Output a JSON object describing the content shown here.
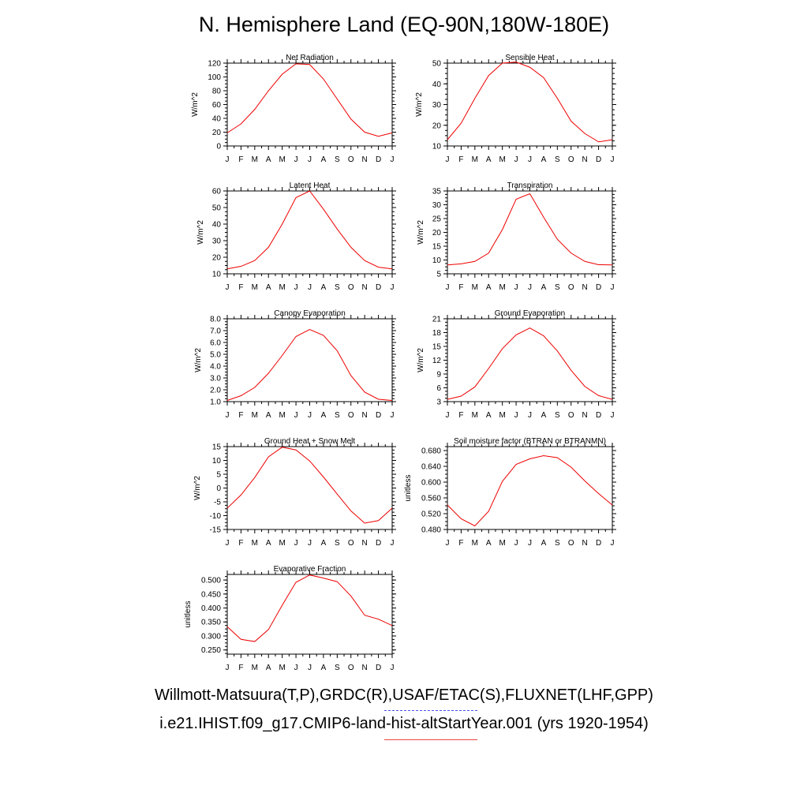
{
  "title": "N. Hemisphere Land (EQ-90N,180W-180E)",
  "legend": {
    "line1": "Willmott-Matsuura(T,P),GRDC(R),USAF/ETAC(S),FLUXNET(LHF,GPP)",
    "line2": "i.e21.IHIST.f09_g17.CMIP6-land-hist-altStartYear.001 (yrs 1920-1954)",
    "obs_color": "#4455ee",
    "model_color": "#ee4444"
  },
  "chart_data": [
    {
      "type": "line",
      "title": "Net Radiation",
      "ylabel": "W/m^2",
      "categories": [
        "J",
        "F",
        "M",
        "A",
        "M",
        "J",
        "J",
        "A",
        "S",
        "O",
        "N",
        "D",
        "J"
      ],
      "ylim": [
        0,
        120
      ],
      "yticks": [
        "0",
        "20",
        "40",
        "60",
        "80",
        "100",
        "120"
      ],
      "series": [
        {
          "color": "#ee0000",
          "values": [
            19,
            32,
            53,
            80,
            104,
            119,
            118,
            97,
            68,
            39,
            20,
            14,
            19
          ]
        }
      ]
    },
    {
      "type": "line",
      "title": "Sensible Heat",
      "ylabel": "W/m^2",
      "categories": [
        "J",
        "F",
        "M",
        "A",
        "M",
        "J",
        "J",
        "A",
        "S",
        "O",
        "N",
        "D",
        "J"
      ],
      "ylim": [
        10,
        50
      ],
      "yticks": [
        "10",
        "20",
        "30",
        "40",
        "50"
      ],
      "series": [
        {
          "color": "#ee0000",
          "values": [
            13,
            21,
            33,
            44,
            50,
            50.5,
            48,
            43,
            33,
            22,
            16,
            12,
            13
          ]
        }
      ]
    },
    {
      "type": "line",
      "title": "Latent Heat",
      "ylabel": "W/m^2",
      "categories": [
        "J",
        "F",
        "M",
        "A",
        "M",
        "J",
        "J",
        "A",
        "S",
        "O",
        "N",
        "D",
        "J"
      ],
      "ylim": [
        10,
        60
      ],
      "yticks": [
        "10",
        "20",
        "30",
        "40",
        "50",
        "60"
      ],
      "series": [
        {
          "color": "#ee0000",
          "values": [
            13,
            14.5,
            18,
            26,
            40,
            56,
            60,
            49,
            37,
            26,
            18,
            14,
            13
          ]
        }
      ]
    },
    {
      "type": "line",
      "title": "Transpiration",
      "ylabel": "W/m^2",
      "categories": [
        "J",
        "F",
        "M",
        "A",
        "M",
        "J",
        "J",
        "A",
        "S",
        "O",
        "N",
        "D",
        "J"
      ],
      "ylim": [
        5,
        35
      ],
      "yticks": [
        "5",
        "10",
        "15",
        "20",
        "25",
        "30",
        "35"
      ],
      "series": [
        {
          "color": "#ee0000",
          "values": [
            8.2,
            8.6,
            9.5,
            12.5,
            21,
            32,
            34,
            25.5,
            17.5,
            12.5,
            9.5,
            8.3,
            8.2
          ]
        }
      ]
    },
    {
      "type": "line",
      "title": "Canopy Evaporation",
      "ylabel": "W/m^2",
      "categories": [
        "J",
        "F",
        "M",
        "A",
        "M",
        "J",
        "J",
        "A",
        "S",
        "O",
        "N",
        "D",
        "J"
      ],
      "ylim": [
        1.0,
        8.0
      ],
      "yticks": [
        "1.0",
        "2.0",
        "3.0",
        "4.0",
        "5.0",
        "6.0",
        "7.0",
        "8.0"
      ],
      "series": [
        {
          "color": "#ee0000",
          "values": [
            1.1,
            1.5,
            2.2,
            3.4,
            4.9,
            6.5,
            7.1,
            6.6,
            5.3,
            3.2,
            1.8,
            1.2,
            1.1
          ]
        }
      ]
    },
    {
      "type": "line",
      "title": "Ground Evaporation",
      "ylabel": "W/m^2",
      "categories": [
        "J",
        "F",
        "M",
        "A",
        "M",
        "J",
        "J",
        "A",
        "S",
        "O",
        "N",
        "D",
        "J"
      ],
      "ylim": [
        3,
        21
      ],
      "yticks": [
        "3",
        "6",
        "9",
        "12",
        "15",
        "18",
        "21"
      ],
      "series": [
        {
          "color": "#ee0000",
          "values": [
            3.5,
            4.2,
            6.2,
            10.2,
            14.5,
            17.5,
            19,
            17.3,
            14,
            9.8,
            6.3,
            4.3,
            3.5
          ]
        }
      ]
    },
    {
      "type": "line",
      "title": "Ground Heat + Snow Melt",
      "ylabel": "W/m^2",
      "categories": [
        "J",
        "F",
        "M",
        "A",
        "M",
        "J",
        "J",
        "A",
        "S",
        "O",
        "N",
        "D",
        "J"
      ],
      "ylim": [
        -15,
        15
      ],
      "yticks": [
        "-15",
        "-10",
        "-5",
        "0",
        "5",
        "10",
        "15"
      ],
      "series": [
        {
          "color": "#ee0000",
          "values": [
            -7.3,
            -2.5,
            3.8,
            11.3,
            14.8,
            13.8,
            9.8,
            4,
            -2.2,
            -8.3,
            -12.7,
            -11.8,
            -7.3
          ]
        }
      ]
    },
    {
      "type": "line",
      "title": "Soil moisture factor (BTRAN or BTRANMN)",
      "ylabel": "unitless",
      "categories": [
        "J",
        "F",
        "M",
        "A",
        "M",
        "J",
        "J",
        "A",
        "S",
        "O",
        "N",
        "D",
        "J"
      ],
      "ylim": [
        0.48,
        0.69
      ],
      "yticks": [
        "0.480",
        "0.520",
        "0.560",
        "0.600",
        "0.640",
        "0.680"
      ],
      "series": [
        {
          "color": "#ee0000",
          "values": [
            0.542,
            0.507,
            0.489,
            0.526,
            0.602,
            0.645,
            0.659,
            0.667,
            0.662,
            0.638,
            0.603,
            0.571,
            0.542
          ]
        }
      ]
    },
    {
      "type": "line",
      "title": "Evaporative Fraction",
      "ylabel": "unitless",
      "categories": [
        "J",
        "F",
        "M",
        "A",
        "M",
        "J",
        "J",
        "A",
        "S",
        "O",
        "N",
        "D",
        "J"
      ],
      "ylim": [
        0.235,
        0.52
      ],
      "yticks": [
        "0.250",
        "0.300",
        "0.350",
        "0.400",
        "0.450",
        "0.500"
      ],
      "series": [
        {
          "color": "#ee0000",
          "values": [
            0.333,
            0.288,
            0.28,
            0.323,
            0.41,
            0.492,
            0.518,
            0.507,
            0.494,
            0.443,
            0.374,
            0.36,
            0.337
          ]
        }
      ]
    }
  ]
}
